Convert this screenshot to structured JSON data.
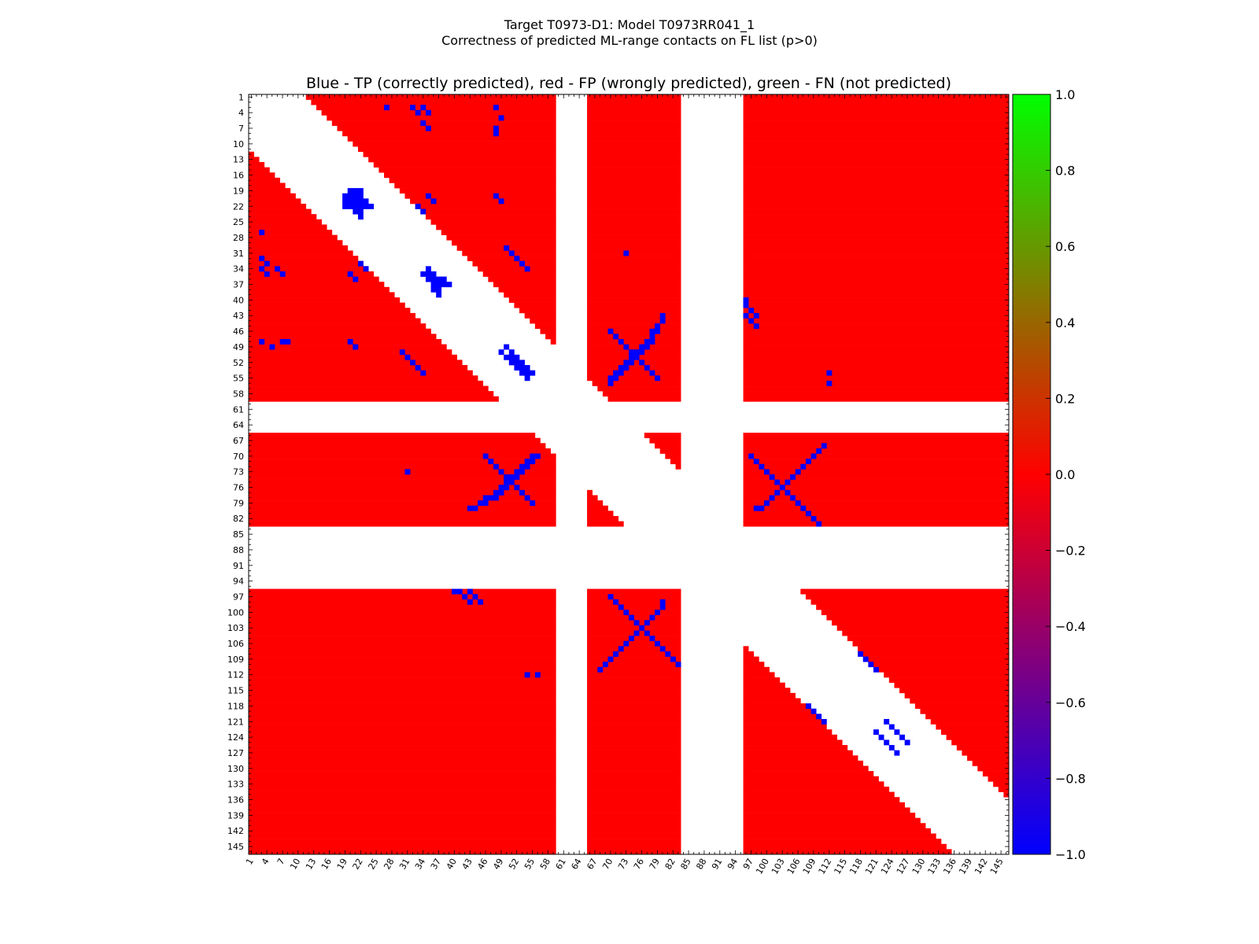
{
  "figure": {
    "title_line1": "Target T0973-D1: Model T0973RR041_1",
    "title_line2": "Correctness of predicted ML-range contacts on FL list (p>0)"
  },
  "chart_data": {
    "type": "heatmap",
    "title": "Blue - TP (correctly predicted), red - FP (wrongly predicted), green - FN (not predicted)",
    "xlabel": "",
    "ylabel": "",
    "n_residues": 146,
    "xlim": [
      1,
      146
    ],
    "ylim": [
      1,
      146
    ],
    "tick_labels": [
      "1",
      "4",
      "7",
      "10",
      "13",
      "16",
      "19",
      "22",
      "25",
      "28",
      "31",
      "34",
      "37",
      "40",
      "43",
      "46",
      "49",
      "52",
      "55",
      "58",
      "61",
      "64",
      "67",
      "70",
      "73",
      "76",
      "79",
      "82",
      "85",
      "88",
      "91",
      "94",
      "97",
      "100",
      "103",
      "106",
      "109",
      "112",
      "115",
      "118",
      "121",
      "124",
      "127",
      "130",
      "133",
      "136",
      "139",
      "142",
      "145"
    ],
    "grid": false,
    "colors": {
      "TP": "#0000ff",
      "FP": "#ff0000",
      "FN": "#00ff00",
      "none": "#ffffff"
    },
    "excluded_residue_ranges": [
      [
        60,
        65
      ],
      [
        84,
        95
      ]
    ],
    "diagonal_exclusion_band": 11,
    "tp_contacts": [
      [
        19,
        20
      ],
      [
        19,
        21
      ],
      [
        19,
        22
      ],
      [
        20,
        20
      ],
      [
        20,
        21
      ],
      [
        20,
        22
      ],
      [
        21,
        21
      ],
      [
        21,
        22
      ],
      [
        21,
        23
      ],
      [
        22,
        22
      ],
      [
        22,
        23
      ],
      [
        22,
        24
      ],
      [
        34,
        35
      ],
      [
        35,
        35
      ],
      [
        35,
        36
      ],
      [
        36,
        36
      ],
      [
        36,
        37
      ],
      [
        36,
        38
      ],
      [
        37,
        37
      ],
      [
        37,
        38
      ],
      [
        37,
        39
      ],
      [
        49,
        50
      ],
      [
        50,
        51
      ],
      [
        51,
        51
      ],
      [
        51,
        52
      ],
      [
        52,
        52
      ],
      [
        52,
        53
      ],
      [
        53,
        53
      ],
      [
        53,
        54
      ],
      [
        54,
        54
      ],
      [
        54,
        55
      ],
      [
        46,
        78
      ],
      [
        46,
        79
      ],
      [
        47,
        78
      ],
      [
        48,
        77
      ],
      [
        48,
        78
      ],
      [
        49,
        76
      ],
      [
        49,
        77
      ],
      [
        50,
        75
      ],
      [
        50,
        76
      ],
      [
        51,
        74
      ],
      [
        51,
        75
      ],
      [
        52,
        73
      ],
      [
        52,
        74
      ],
      [
        53,
        72
      ],
      [
        53,
        73
      ],
      [
        54,
        71
      ],
      [
        54,
        72
      ],
      [
        55,
        70
      ],
      [
        55,
        71
      ],
      [
        56,
        70
      ],
      [
        45,
        79
      ],
      [
        44,
        80
      ],
      [
        43,
        80
      ],
      [
        98,
        80
      ],
      [
        99,
        80
      ],
      [
        100,
        79
      ],
      [
        101,
        78
      ],
      [
        102,
        77
      ],
      [
        103,
        76
      ],
      [
        104,
        75
      ],
      [
        105,
        74
      ],
      [
        106,
        73
      ],
      [
        107,
        72
      ],
      [
        108,
        71
      ],
      [
        109,
        70
      ],
      [
        110,
        69
      ],
      [
        111,
        68
      ],
      [
        70,
        97
      ],
      [
        71,
        98
      ],
      [
        72,
        99
      ],
      [
        73,
        100
      ],
      [
        74,
        101
      ],
      [
        75,
        102
      ],
      [
        76,
        103
      ],
      [
        77,
        104
      ],
      [
        78,
        105
      ],
      [
        79,
        106
      ],
      [
        80,
        107
      ],
      [
        81,
        108
      ],
      [
        82,
        109
      ],
      [
        83,
        110
      ],
      [
        108,
        118
      ],
      [
        109,
        119
      ],
      [
        110,
        120
      ],
      [
        111,
        121
      ],
      [
        121,
        123
      ],
      [
        122,
        124
      ],
      [
        123,
        125
      ],
      [
        124,
        126
      ],
      [
        125,
        127
      ],
      [
        96,
        40
      ],
      [
        96,
        41
      ],
      [
        97,
        42
      ],
      [
        98,
        43
      ],
      [
        70,
        46
      ],
      [
        71,
        47
      ],
      [
        72,
        48
      ],
      [
        73,
        49
      ],
      [
        74,
        50
      ],
      [
        75,
        51
      ],
      [
        76,
        52
      ],
      [
        77,
        53
      ],
      [
        78,
        54
      ],
      [
        79,
        55
      ],
      [
        20,
        48
      ],
      [
        21,
        49
      ],
      [
        30,
        50
      ],
      [
        31,
        51
      ],
      [
        32,
        52
      ],
      [
        33,
        53
      ],
      [
        34,
        54
      ],
      [
        22,
        33
      ],
      [
        23,
        34
      ],
      [
        20,
        35
      ],
      [
        21,
        36
      ],
      [
        3,
        27
      ],
      [
        3,
        32
      ],
      [
        3,
        34
      ],
      [
        6,
        34
      ],
      [
        8,
        48
      ],
      [
        43,
        96
      ],
      [
        44,
        97
      ],
      [
        45,
        98
      ],
      [
        31,
        73
      ],
      [
        54,
        112
      ],
      [
        112,
        56
      ],
      [
        73,
        31
      ],
      [
        48,
        3
      ],
      [
        49,
        5
      ],
      [
        48,
        7
      ],
      [
        33,
        4
      ],
      [
        35,
        4
      ],
      [
        35,
        7
      ]
    ]
  }
}
